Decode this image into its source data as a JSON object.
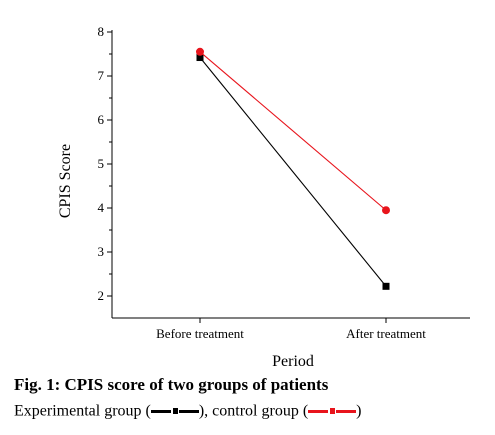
{
  "chart_data": {
    "type": "line",
    "ylabel": "CPIS Score",
    "xlabel": "Period",
    "categories": [
      "Before treatment",
      "After treatment"
    ],
    "ylim": [
      1.5,
      8
    ],
    "yticks": [
      2,
      3,
      4,
      5,
      6,
      7,
      8
    ],
    "grid": false,
    "series": [
      {
        "name": "Experimental group",
        "color": "#000000",
        "marker": "square",
        "values": [
          7.42,
          2.22
        ]
      },
      {
        "name": "control group",
        "color": "#e8141c",
        "marker": "circle",
        "values": [
          7.55,
          3.95
        ]
      }
    ]
  },
  "caption": {
    "title": "Fig. 1: CPIS score of two groups of patients",
    "legend_prefix": "Experimental group (",
    "legend_middle": "), control group (",
    "legend_suffix": ")"
  }
}
